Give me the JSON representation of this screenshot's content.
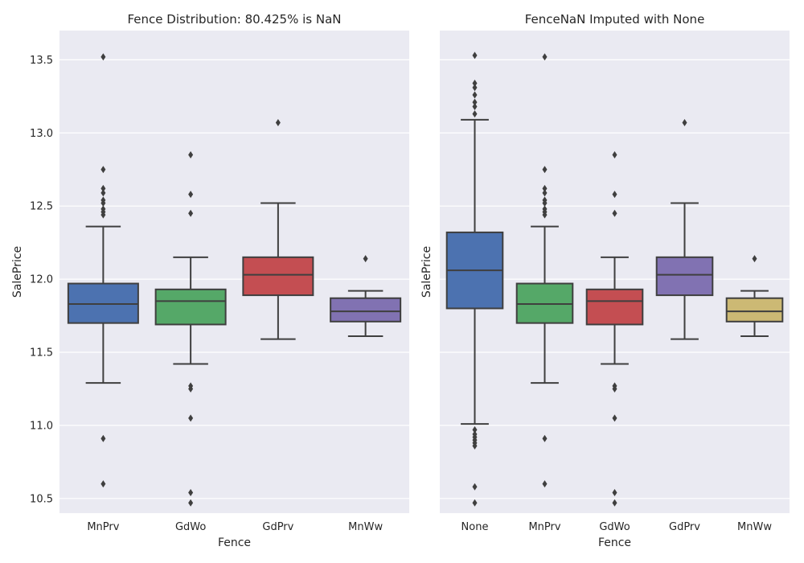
{
  "chart_data": [
    {
      "type": "box",
      "title": "Fence Distribution: 80.425% is NaN",
      "xlabel": "Fence",
      "ylabel": "SalePrice",
      "ylim": [
        10.4,
        13.7
      ],
      "yticks": [
        "10.5",
        "11.0",
        "11.5",
        "12.0",
        "12.5",
        "13.0",
        "13.5"
      ],
      "grid": true,
      "categories": [
        "MnPrv",
        "GdWo",
        "GdPrv",
        "MnWw"
      ],
      "boxes": [
        {
          "category": "MnPrv",
          "color": "#4c72b0",
          "whisker_low": 11.29,
          "q1": 11.7,
          "median": 11.83,
          "q3": 11.97,
          "whisker_high": 12.36,
          "outliers": [
            13.52,
            12.75,
            12.62,
            12.59,
            12.54,
            12.52,
            12.48,
            12.46,
            12.44,
            10.91,
            10.6
          ]
        },
        {
          "category": "GdWo",
          "color": "#55a868",
          "whisker_low": 11.42,
          "q1": 11.69,
          "median": 11.85,
          "q3": 11.93,
          "whisker_high": 12.15,
          "outliers": [
            12.85,
            12.58,
            12.45,
            11.27,
            11.25,
            11.05,
            10.54,
            10.47
          ]
        },
        {
          "category": "GdPrv",
          "color": "#c44e52",
          "whisker_low": 11.59,
          "q1": 11.89,
          "median": 12.03,
          "q3": 12.15,
          "whisker_high": 12.52,
          "outliers": [
            13.07
          ]
        },
        {
          "category": "MnWw",
          "color": "#8172b2",
          "whisker_low": 11.61,
          "q1": 11.71,
          "median": 11.78,
          "q3": 11.87,
          "whisker_high": 11.92,
          "outliers": [
            12.14
          ]
        }
      ]
    },
    {
      "type": "box",
      "title": "FenceNaN Imputed with None",
      "xlabel": "Fence",
      "ylabel": "SalePrice",
      "ylim": [
        10.4,
        13.7
      ],
      "yticks": [
        "10.5",
        "11.0",
        "11.5",
        "12.0",
        "12.5",
        "13.0",
        "13.5"
      ],
      "grid": true,
      "categories": [
        "None",
        "MnPrv",
        "GdWo",
        "GdPrv",
        "MnWw"
      ],
      "boxes": [
        {
          "category": "None",
          "color": "#4c72b0",
          "whisker_low": 11.01,
          "q1": 11.8,
          "median": 12.06,
          "q3": 12.32,
          "whisker_high": 13.09,
          "outliers": [
            13.53,
            13.34,
            13.31,
            13.26,
            13.21,
            13.18,
            13.13,
            10.97,
            10.94,
            10.92,
            10.9,
            10.88,
            10.86,
            10.58,
            10.47
          ]
        },
        {
          "category": "MnPrv",
          "color": "#55a868",
          "whisker_low": 11.29,
          "q1": 11.7,
          "median": 11.83,
          "q3": 11.97,
          "whisker_high": 12.36,
          "outliers": [
            13.52,
            12.75,
            12.62,
            12.59,
            12.54,
            12.52,
            12.48,
            12.46,
            12.44,
            10.91,
            10.6
          ]
        },
        {
          "category": "GdWo",
          "color": "#c44e52",
          "whisker_low": 11.42,
          "q1": 11.69,
          "median": 11.85,
          "q3": 11.93,
          "whisker_high": 12.15,
          "outliers": [
            12.85,
            12.58,
            12.45,
            11.27,
            11.25,
            11.05,
            10.54,
            10.47
          ]
        },
        {
          "category": "GdPrv",
          "color": "#8172b2",
          "whisker_low": 11.59,
          "q1": 11.89,
          "median": 12.03,
          "q3": 12.15,
          "whisker_high": 12.52,
          "outliers": [
            13.07
          ]
        },
        {
          "category": "MnWw",
          "color": "#ccb974",
          "whisker_low": 11.61,
          "q1": 11.71,
          "median": 11.78,
          "q3": 11.87,
          "whisker_high": 11.92,
          "outliers": [
            12.14
          ]
        }
      ]
    }
  ],
  "style": {
    "axes_background": "#eaeaf2",
    "grid_color": "#ffffff",
    "line_color": "#3f3f3f"
  }
}
